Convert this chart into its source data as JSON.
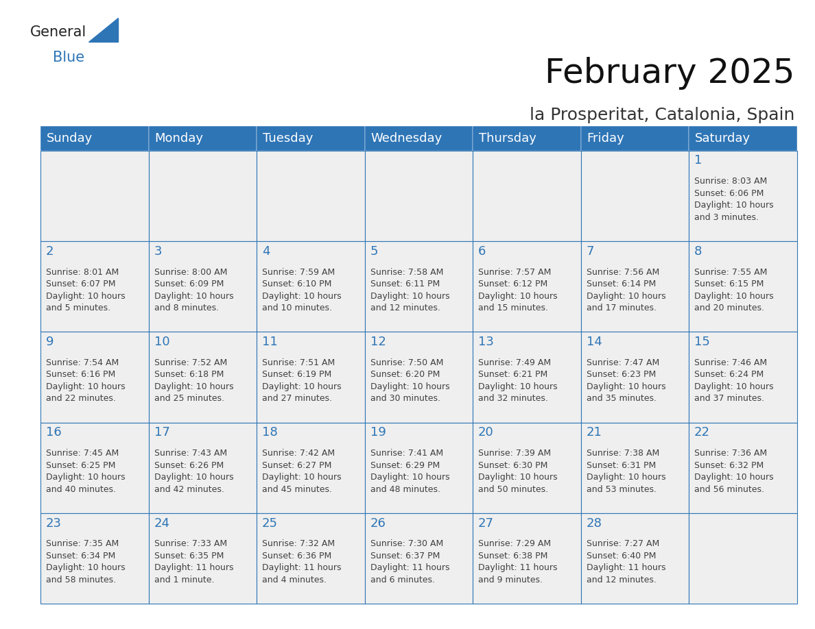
{
  "title": "February 2025",
  "subtitle": "la Prosperitat, Catalonia, Spain",
  "header_color": "#2E75B6",
  "header_text_color": "#FFFFFF",
  "cell_border_color": "#2E75B6",
  "cell_bg_color": "#EFEFEF",
  "day_number_color": "#2E75B6",
  "text_color": "#404040",
  "background_color": "#FFFFFF",
  "days_of_week": [
    "Sunday",
    "Monday",
    "Tuesday",
    "Wednesday",
    "Thursday",
    "Friday",
    "Saturday"
  ],
  "weeks": [
    [
      {
        "day": "",
        "info": ""
      },
      {
        "day": "",
        "info": ""
      },
      {
        "day": "",
        "info": ""
      },
      {
        "day": "",
        "info": ""
      },
      {
        "day": "",
        "info": ""
      },
      {
        "day": "",
        "info": ""
      },
      {
        "day": "1",
        "info": "Sunrise: 8:03 AM\nSunset: 6:06 PM\nDaylight: 10 hours\nand 3 minutes."
      }
    ],
    [
      {
        "day": "2",
        "info": "Sunrise: 8:01 AM\nSunset: 6:07 PM\nDaylight: 10 hours\nand 5 minutes."
      },
      {
        "day": "3",
        "info": "Sunrise: 8:00 AM\nSunset: 6:09 PM\nDaylight: 10 hours\nand 8 minutes."
      },
      {
        "day": "4",
        "info": "Sunrise: 7:59 AM\nSunset: 6:10 PM\nDaylight: 10 hours\nand 10 minutes."
      },
      {
        "day": "5",
        "info": "Sunrise: 7:58 AM\nSunset: 6:11 PM\nDaylight: 10 hours\nand 12 minutes."
      },
      {
        "day": "6",
        "info": "Sunrise: 7:57 AM\nSunset: 6:12 PM\nDaylight: 10 hours\nand 15 minutes."
      },
      {
        "day": "7",
        "info": "Sunrise: 7:56 AM\nSunset: 6:14 PM\nDaylight: 10 hours\nand 17 minutes."
      },
      {
        "day": "8",
        "info": "Sunrise: 7:55 AM\nSunset: 6:15 PM\nDaylight: 10 hours\nand 20 minutes."
      }
    ],
    [
      {
        "day": "9",
        "info": "Sunrise: 7:54 AM\nSunset: 6:16 PM\nDaylight: 10 hours\nand 22 minutes."
      },
      {
        "day": "10",
        "info": "Sunrise: 7:52 AM\nSunset: 6:18 PM\nDaylight: 10 hours\nand 25 minutes."
      },
      {
        "day": "11",
        "info": "Sunrise: 7:51 AM\nSunset: 6:19 PM\nDaylight: 10 hours\nand 27 minutes."
      },
      {
        "day": "12",
        "info": "Sunrise: 7:50 AM\nSunset: 6:20 PM\nDaylight: 10 hours\nand 30 minutes."
      },
      {
        "day": "13",
        "info": "Sunrise: 7:49 AM\nSunset: 6:21 PM\nDaylight: 10 hours\nand 32 minutes."
      },
      {
        "day": "14",
        "info": "Sunrise: 7:47 AM\nSunset: 6:23 PM\nDaylight: 10 hours\nand 35 minutes."
      },
      {
        "day": "15",
        "info": "Sunrise: 7:46 AM\nSunset: 6:24 PM\nDaylight: 10 hours\nand 37 minutes."
      }
    ],
    [
      {
        "day": "16",
        "info": "Sunrise: 7:45 AM\nSunset: 6:25 PM\nDaylight: 10 hours\nand 40 minutes."
      },
      {
        "day": "17",
        "info": "Sunrise: 7:43 AM\nSunset: 6:26 PM\nDaylight: 10 hours\nand 42 minutes."
      },
      {
        "day": "18",
        "info": "Sunrise: 7:42 AM\nSunset: 6:27 PM\nDaylight: 10 hours\nand 45 minutes."
      },
      {
        "day": "19",
        "info": "Sunrise: 7:41 AM\nSunset: 6:29 PM\nDaylight: 10 hours\nand 48 minutes."
      },
      {
        "day": "20",
        "info": "Sunrise: 7:39 AM\nSunset: 6:30 PM\nDaylight: 10 hours\nand 50 minutes."
      },
      {
        "day": "21",
        "info": "Sunrise: 7:38 AM\nSunset: 6:31 PM\nDaylight: 10 hours\nand 53 minutes."
      },
      {
        "day": "22",
        "info": "Sunrise: 7:36 AM\nSunset: 6:32 PM\nDaylight: 10 hours\nand 56 minutes."
      }
    ],
    [
      {
        "day": "23",
        "info": "Sunrise: 7:35 AM\nSunset: 6:34 PM\nDaylight: 10 hours\nand 58 minutes."
      },
      {
        "day": "24",
        "info": "Sunrise: 7:33 AM\nSunset: 6:35 PM\nDaylight: 11 hours\nand 1 minute."
      },
      {
        "day": "25",
        "info": "Sunrise: 7:32 AM\nSunset: 6:36 PM\nDaylight: 11 hours\nand 4 minutes."
      },
      {
        "day": "26",
        "info": "Sunrise: 7:30 AM\nSunset: 6:37 PM\nDaylight: 11 hours\nand 6 minutes."
      },
      {
        "day": "27",
        "info": "Sunrise: 7:29 AM\nSunset: 6:38 PM\nDaylight: 11 hours\nand 9 minutes."
      },
      {
        "day": "28",
        "info": "Sunrise: 7:27 AM\nSunset: 6:40 PM\nDaylight: 11 hours\nand 12 minutes."
      },
      {
        "day": "",
        "info": ""
      }
    ]
  ],
  "logo_general_color": "#222222",
  "logo_blue_color": "#2E75B6",
  "header_fontsize": 36,
  "subtitle_fontsize": 18,
  "day_header_fontsize": 13,
  "day_number_fontsize": 13,
  "cell_text_fontsize": 9.0
}
